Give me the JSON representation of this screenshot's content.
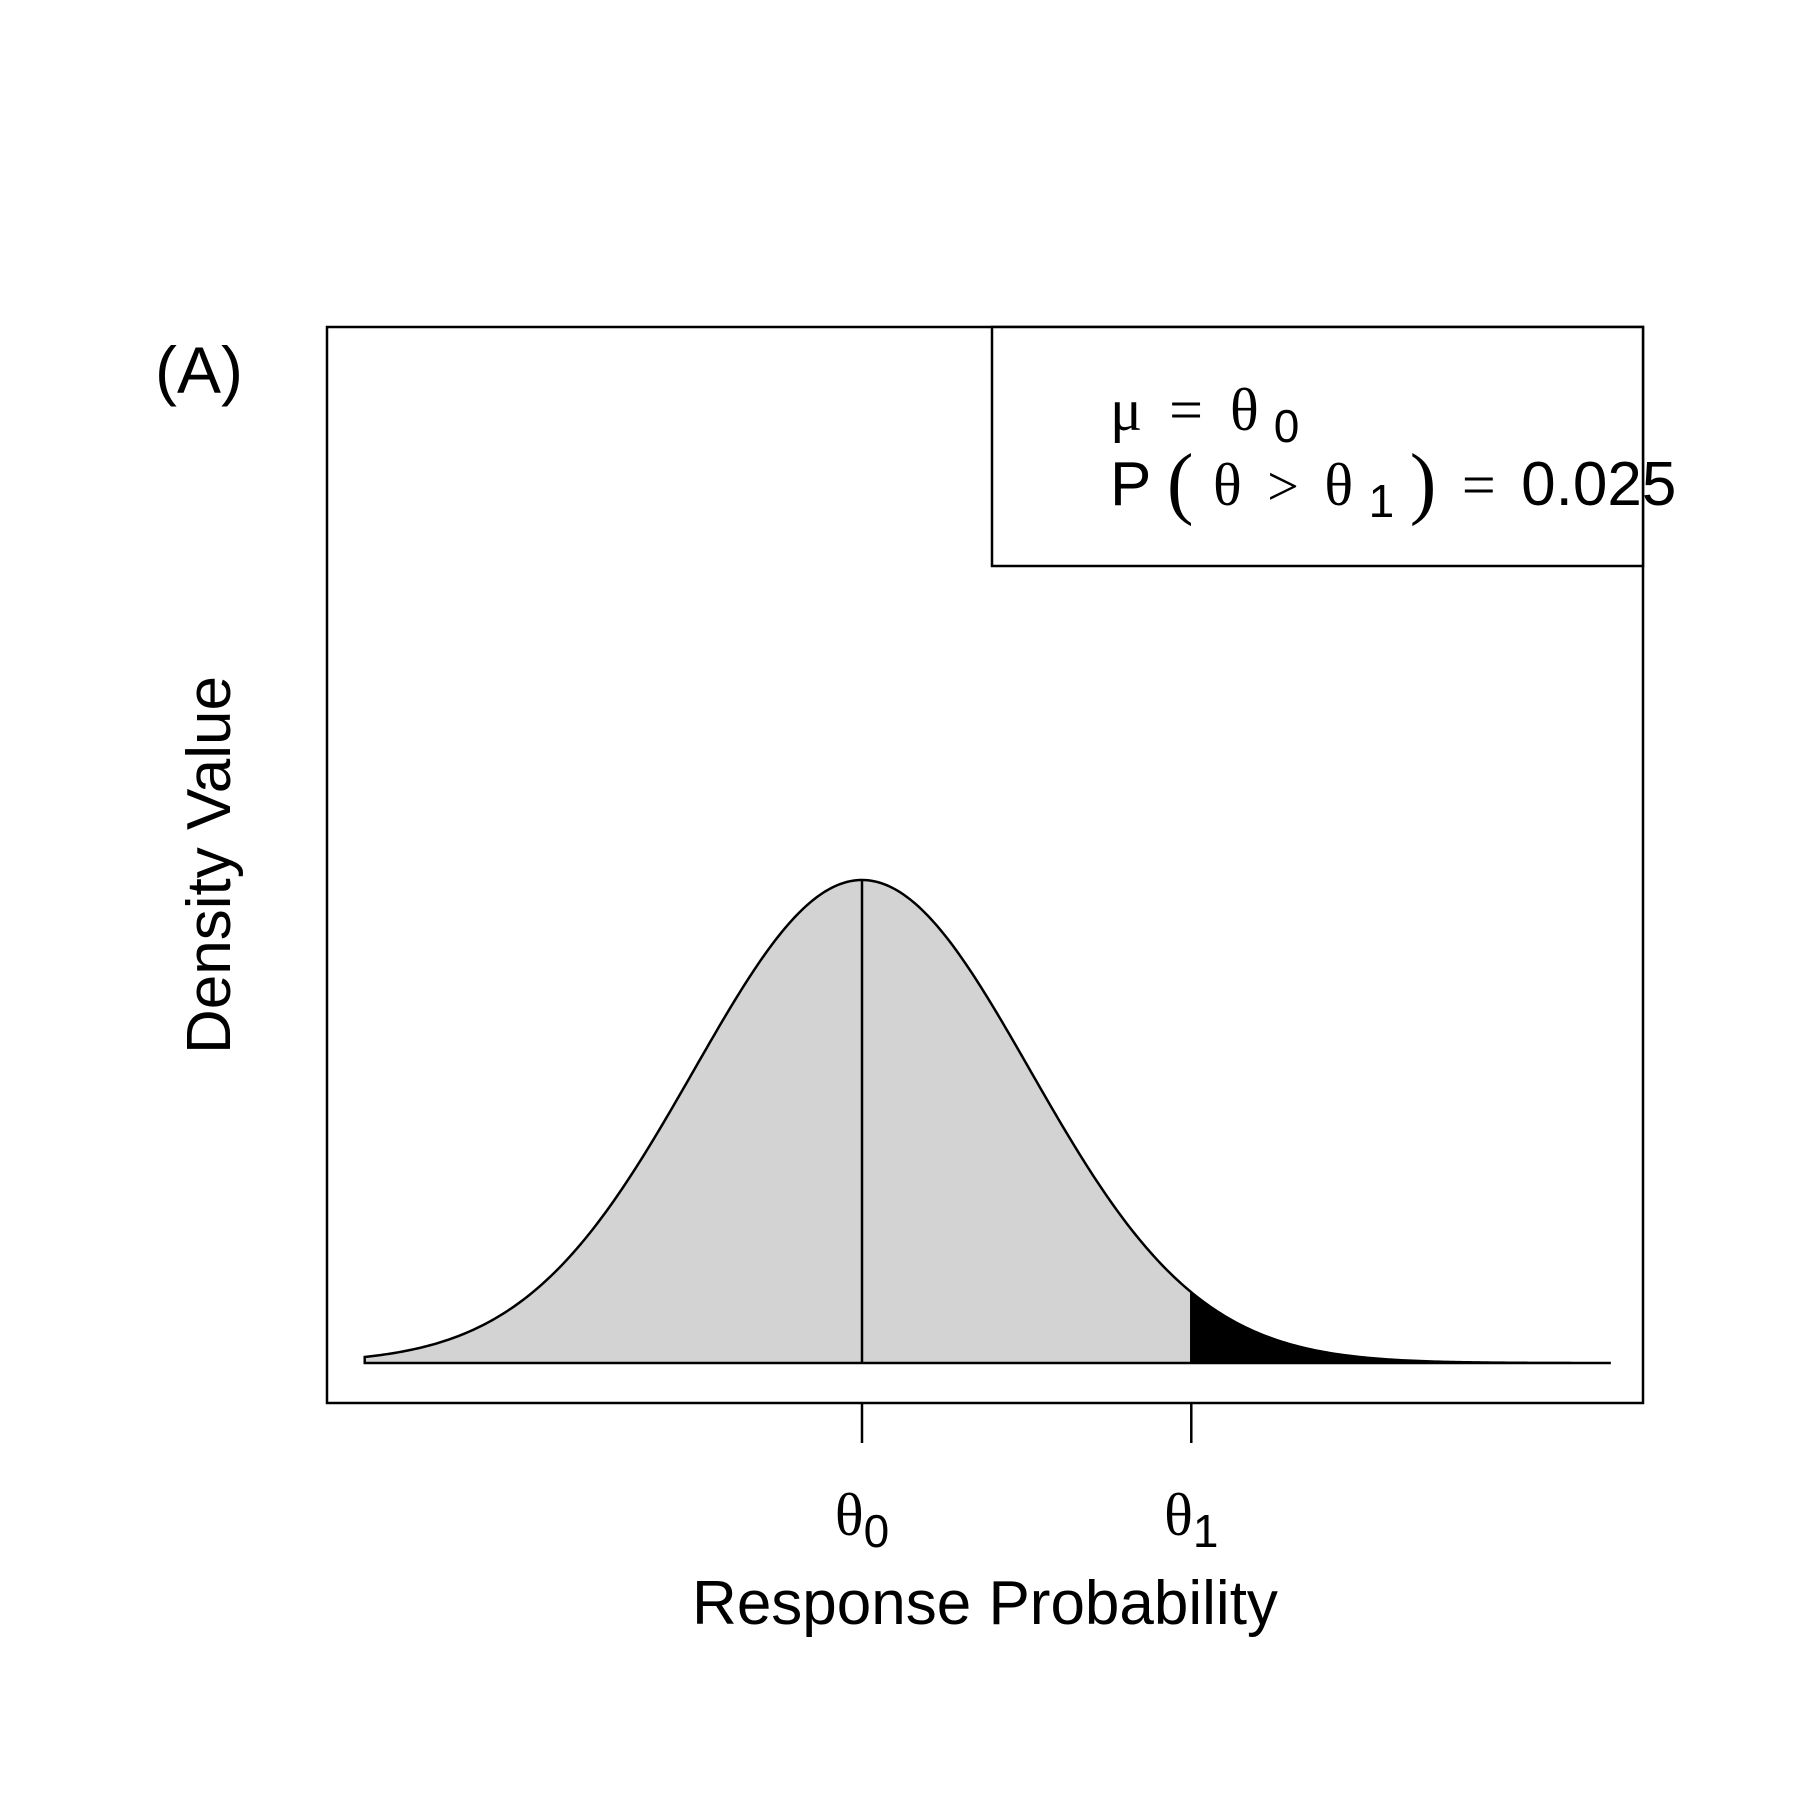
{
  "chart_data": {
    "type": "area",
    "panel_label": "(A)",
    "xlabel": "Response Probability",
    "ylabel": "Density Value",
    "distribution": {
      "family": "normal",
      "mean_tick": "θ0",
      "critical_tick": "θ1",
      "critical_z": 1.96,
      "shaded_tail": "upper",
      "tail_probability": 0.025,
      "x_range_sd": [
        -2.96,
        4.45
      ]
    },
    "x_ticks": [
      {
        "label": "θ",
        "sub": "0"
      },
      {
        "label": "θ",
        "sub": "1"
      }
    ],
    "legend": {
      "line1": {
        "lhs": "μ",
        "eq": "=",
        "rhs": "θ",
        "sub": "0"
      },
      "line2": {
        "p": "P",
        "open": "(",
        "theta": "θ",
        "gt": ">",
        "theta1": "θ",
        "sub": "1",
        "close": ")",
        "eq": "=",
        "value": "0.025"
      },
      "placement": "top-right"
    },
    "colors": {
      "body_fill": "#d3d3d3",
      "tail_fill": "#000000",
      "line": "#000000"
    }
  }
}
